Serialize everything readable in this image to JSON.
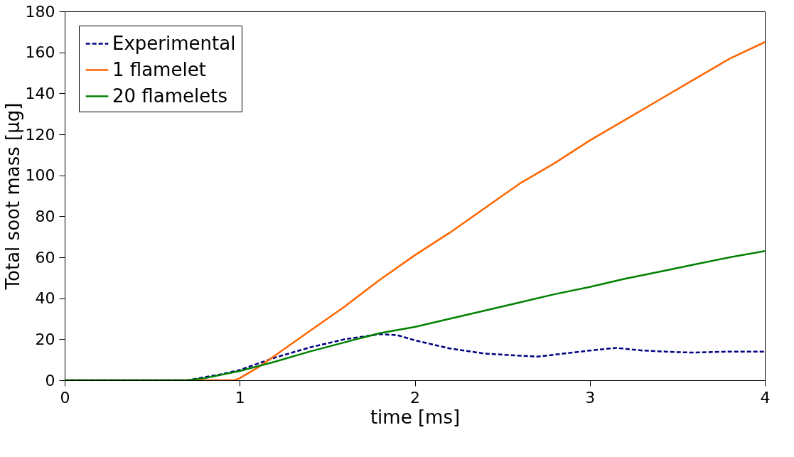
{
  "chart_data": {
    "type": "line",
    "xlabel": "time [ms]",
    "ylabel": "Total soot mass [µg]",
    "xlim": [
      0,
      4
    ],
    "xticks": [
      0,
      1,
      2,
      3,
      4
    ],
    "ylim": [
      0,
      180
    ],
    "yticks": [
      0,
      20,
      40,
      60,
      80,
      100,
      120,
      140,
      160,
      180
    ],
    "grid": false,
    "legend": "top left",
    "marker": "none",
    "series": [
      {
        "name": "Experimental",
        "color": "#000080",
        "line_style": "dashed",
        "x": [
          0,
          0.7,
          0.8,
          0.9,
          1.0,
          1.2,
          1.4,
          1.6,
          1.8,
          1.9,
          2.0,
          2.2,
          2.4,
          2.6,
          2.7,
          2.8,
          3.0,
          3.15,
          3.3,
          3.5,
          3.6,
          3.8,
          4.0
        ],
        "values": [
          0,
          0,
          1.5,
          3,
          5,
          11,
          16,
          20,
          22.5,
          22,
          19.5,
          15.5,
          13,
          12,
          11.5,
          12.5,
          14.5,
          15.8,
          14.5,
          13.7,
          13.5,
          14,
          14
        ]
      },
      {
        "name": "1 flamelet",
        "color": "#ff6600",
        "line_style": "solid",
        "x": [
          0,
          0.97,
          1.0,
          1.1,
          1.2,
          1.4,
          1.6,
          1.8,
          2.0,
          2.2,
          2.4,
          2.6,
          2.8,
          3.0,
          3.2,
          3.4,
          3.6,
          3.8,
          4.0
        ],
        "values": [
          0,
          0,
          1,
          6,
          12,
          24,
          36,
          49,
          61,
          72,
          84,
          96,
          106,
          117,
          127,
          137,
          147,
          157,
          165
        ]
      },
      {
        "name": "20 flamelets",
        "color": "#008000",
        "line_style": "solid",
        "x": [
          0,
          0.7,
          0.8,
          1.0,
          1.2,
          1.4,
          1.6,
          1.8,
          2.0,
          2.2,
          2.4,
          2.6,
          2.8,
          3.0,
          3.2,
          3.4,
          3.6,
          3.8,
          4.0
        ],
        "values": [
          0,
          0,
          1,
          4.5,
          9,
          14,
          18.5,
          23,
          26,
          30,
          34,
          38,
          42,
          45.5,
          49.5,
          53,
          56.5,
          60,
          63
        ]
      }
    ]
  }
}
